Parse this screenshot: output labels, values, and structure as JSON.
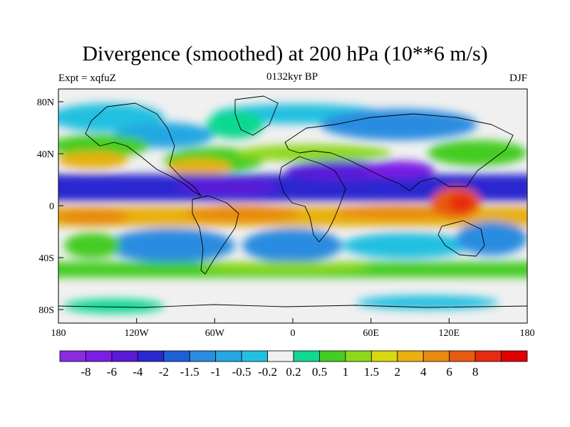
{
  "title": "Divergence (smoothed) at 200 hPa (10**6 m/s)",
  "subtitle_left": "Expt = xqfuZ",
  "subtitle_center": "0132kyr BP",
  "subtitle_right": "DJF",
  "x_ticks": [
    "180",
    "120W",
    "60W",
    "0",
    "60E",
    "120E",
    "180"
  ],
  "y_ticks": [
    "80N",
    "40N",
    "0",
    "40S",
    "80S"
  ],
  "colorbar": {
    "colors": [
      "#8a2be2",
      "#7a1ee6",
      "#5a1ad8",
      "#2a28d0",
      "#1e5fd8",
      "#2a8ce0",
      "#24a7e2",
      "#22c0e0",
      "#f0f0f0",
      "#10d890",
      "#44cc22",
      "#8ed81a",
      "#d8d810",
      "#e8b010",
      "#e88a10",
      "#e85a10",
      "#e82a10",
      "#e00000"
    ],
    "labels": [
      "-8",
      "-6",
      "-4",
      "-2",
      "-1.5",
      "-1",
      "-0.5",
      "-0.2",
      "0.2",
      "0.5",
      "1",
      "1.5",
      "2",
      "4",
      "6",
      "8"
    ]
  },
  "chart_data": {
    "type": "filled-contour-map",
    "title": "Divergence (smoothed) at 200 hPa (10**6 m/s)",
    "projection": "cylindrical equidistant",
    "lon_range": [
      -180,
      180
    ],
    "lat_range": [
      -90,
      90
    ],
    "contour_levels": [
      -8,
      -6,
      -4,
      -2,
      -1.5,
      -1,
      -0.5,
      -0.2,
      0.2,
      0.5,
      1,
      1.5,
      2,
      4,
      6,
      8
    ],
    "approx_zonal_pattern": [
      {
        "lat_band": "70N-90N",
        "value": 0.2
      },
      {
        "lat_band": "50N-70N",
        "value": -1
      },
      {
        "lat_band": "35N-50N",
        "value": 1
      },
      {
        "lat_band": "20N-35N",
        "value": 2.5
      },
      {
        "lat_band": "5N-20N",
        "value": -5
      },
      {
        "lat_band": "5S-20S",
        "value": 3
      },
      {
        "lat_band": "20S-40S",
        "value": -1.5
      },
      {
        "lat_band": "40S-55S",
        "value": 1
      },
      {
        "lat_band": "55S-70S",
        "value": 0.3
      },
      {
        "lat_band": "70S-90S",
        "value": 0
      }
    ],
    "maxima": [
      {
        "lon": 125,
        "lat": 0,
        "value": 7
      }
    ]
  }
}
